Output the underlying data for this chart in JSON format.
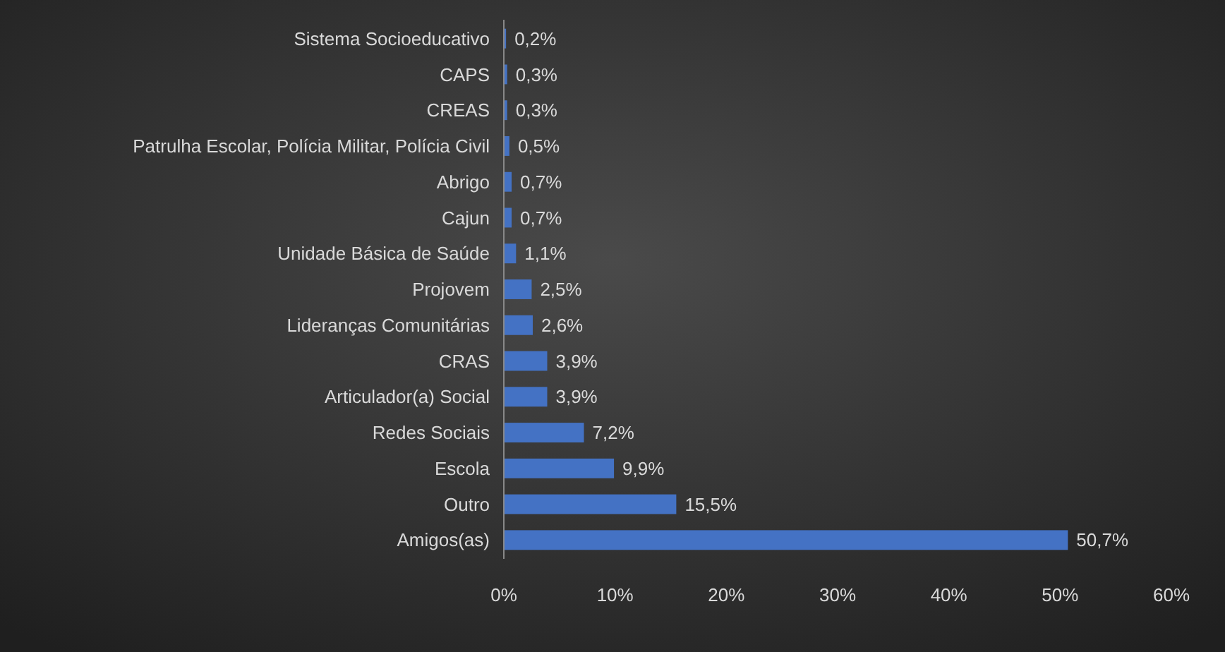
{
  "chart_data": {
    "type": "bar",
    "orientation": "horizontal",
    "categories": [
      "Sistema Socioeducativo",
      "CAPS",
      "CREAS",
      "Patrulha Escolar, Polícia Militar, Polícia Civil",
      "Abrigo",
      "Cajun",
      "Unidade Básica de Saúde",
      "Projovem",
      "Lideranças Comunitárias",
      "CRAS",
      "Articulador(a) Social",
      "Redes Sociais",
      "Escola",
      "Outro",
      "Amigos(as)"
    ],
    "values": [
      0.2,
      0.3,
      0.3,
      0.5,
      0.7,
      0.7,
      1.1,
      2.5,
      2.6,
      3.9,
      3.9,
      7.2,
      9.9,
      15.5,
      50.7
    ],
    "value_labels": [
      "0,2%",
      "0,3%",
      "0,3%",
      "0,5%",
      "0,7%",
      "0,7%",
      "1,1%",
      "2,5%",
      "2,6%",
      "3,9%",
      "3,9%",
      "7,2%",
      "9,9%",
      "15,5%",
      "50,7%"
    ],
    "color": "#4472c4",
    "xlim": [
      0,
      60
    ],
    "xticks": [
      {
        "value": 0,
        "label": "0%"
      },
      {
        "value": 10,
        "label": "10%"
      },
      {
        "value": 20,
        "label": "20%"
      },
      {
        "value": 30,
        "label": "30%"
      },
      {
        "value": 40,
        "label": "40%"
      },
      {
        "value": 50,
        "label": "50%"
      },
      {
        "value": 60,
        "label": "60%"
      }
    ],
    "grid": false
  }
}
